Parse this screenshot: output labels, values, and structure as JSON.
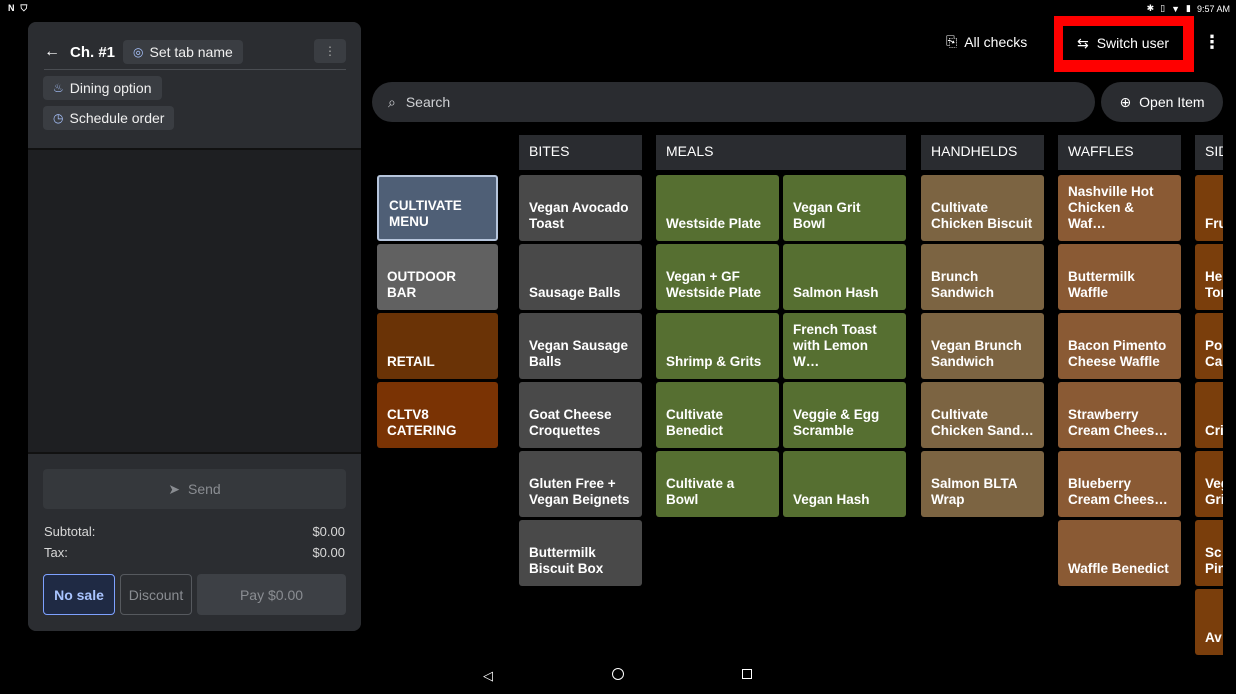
{
  "status_bar": {
    "left_icons": [
      "N",
      "shield-icon"
    ],
    "time": "9:57 AM"
  },
  "order_panel": {
    "tab_title": "Ch. #1",
    "set_tab_name_label": "Set tab name",
    "dining_option_label": "Dining option",
    "schedule_order_label": "Schedule order",
    "send_label": "Send",
    "subtotal_label": "Subtotal:",
    "subtotal_value": "$0.00",
    "tax_label": "Tax:",
    "tax_value": "$0.00",
    "no_sale_label": "No sale",
    "discount_label": "Discount",
    "pay_label": "Pay $0.00"
  },
  "toolbar": {
    "all_checks_label": "All checks",
    "switch_user_label": "Switch user",
    "highlight_color": "#ff0000"
  },
  "search": {
    "placeholder": "Search",
    "open_item_label": "Open Item"
  },
  "menus": [
    {
      "label": "CULTIVATE\nMENU",
      "selected": true,
      "color": "#4f5f76"
    },
    {
      "label": "OUTDOOR BAR",
      "color": "#616161"
    },
    {
      "label": "RETAIL",
      "color": "#6a3306"
    },
    {
      "label": "CLTV8\nCATERING",
      "color": "#7a3304"
    }
  ],
  "categories": [
    {
      "name": "BITES",
      "color": "#494949",
      "items": [
        "Vegan Avocado\nToast",
        "Sausage Balls",
        "Vegan Sausage\nBalls",
        "Goat Cheese\nCroquettes",
        "Gluten Free +\nVegan Beignets",
        "Buttermilk\nBiscuit Box"
      ]
    },
    {
      "name": "MEALS",
      "color": "#566f31",
      "items": [
        "Westside Plate",
        "Vegan Grit Bowl",
        "Vegan + GF\nWestside Plate",
        "Salmon Hash",
        "Shrimp & Grits",
        "French Toast\nwith Lemon W…",
        "Cultivate\nBenedict",
        "Veggie & Egg\nScramble",
        "Cultivate a Bowl",
        "Vegan Hash"
      ]
    },
    {
      "name": "HANDHELDS",
      "color": "#7c6442",
      "items": [
        "Cultivate\nChicken Biscuit",
        "Brunch\nSandwich",
        "Vegan Brunch\nSandwich",
        "Cultivate\nChicken Sand…",
        "Salmon BLTA\nWrap"
      ]
    },
    {
      "name": "WAFFLES",
      "color": "#8a5a34",
      "items": [
        "Nashville Hot\nChicken & Waf…",
        "Buttermilk\nWaffle",
        "Bacon Pimento\nCheese Waffle",
        "Strawberry\nCream Chees…",
        "Blueberry\nCream Chees…",
        "Waffle Benedict"
      ]
    },
    {
      "name": "SID",
      "color": "#7a3e0c",
      "items": [
        "Fru",
        "He\nTor",
        "Po\nCal",
        "Cri",
        "Veg\nGri",
        "Sc\nPin",
        "Av"
      ]
    }
  ]
}
